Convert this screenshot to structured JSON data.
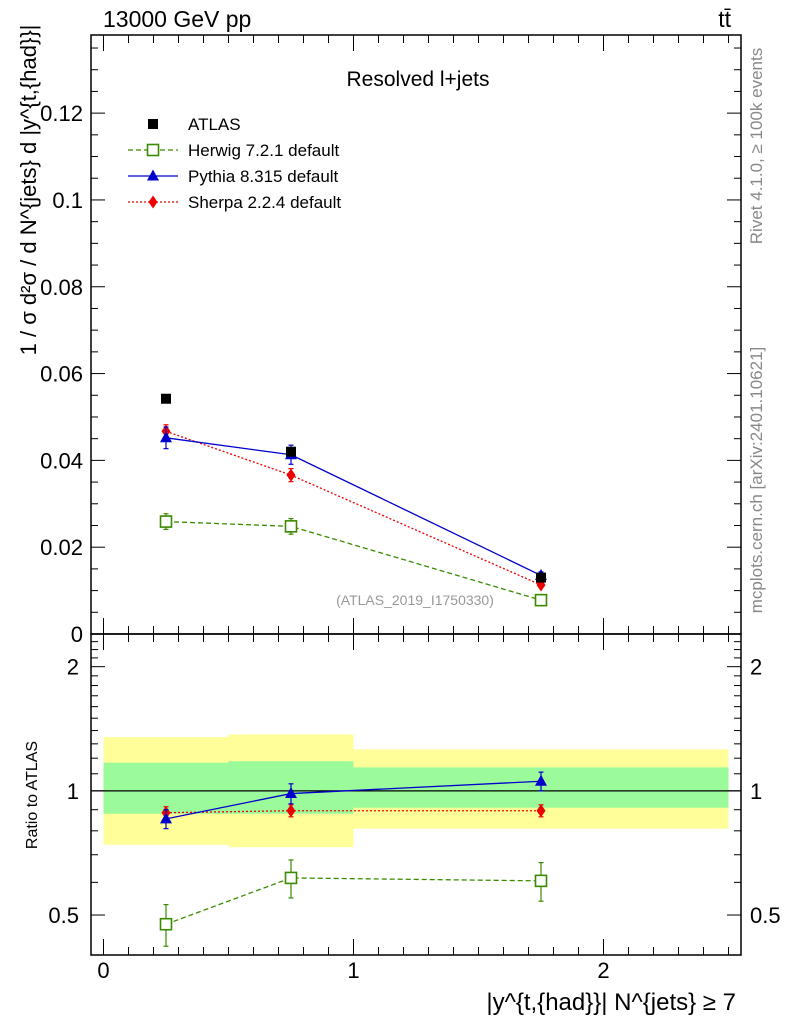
{
  "header": {
    "left": "13000 GeV pp",
    "right": "tt̄"
  },
  "side_text": {
    "rivet": "Rivet 4.1.0, ≥ 100k events",
    "mcplots": "mcplots.cern.ch [arXiv:2401.10621]"
  },
  "main_panel": {
    "title": "Resolved l+jets",
    "watermark": "(ATLAS_2019_I1750330)",
    "ylabel": "1 / σ d²σ / d N^{jets} d |y^{t,{had}}|",
    "ytick_labels": [
      "0",
      "0.02",
      "0.04",
      "0.06",
      "0.08",
      "0.1",
      "0.12"
    ]
  },
  "ratio_panel": {
    "ylabel": "Ratio to ATLAS",
    "ytick_labels_left": [
      "0.5",
      "1",
      "2"
    ],
    "ytick_labels_right": [
      "0.5",
      "1",
      "2"
    ]
  },
  "x_axis": {
    "label": "|y^{t,{had}}| N^{jets} ≥ 7",
    "tick_labels": [
      "0",
      "1",
      "2"
    ]
  },
  "legend": [
    {
      "name": "ATLAS",
      "color": "#000000",
      "marker": "filled-square"
    },
    {
      "name": "Herwig 7.2.1 default",
      "color": "#3a8a00",
      "marker": "open-square"
    },
    {
      "name": "Pythia 8.315 default",
      "color": "#0000cc",
      "marker": "filled-triangle"
    },
    {
      "name": "Sherpa 2.2.4 default",
      "color": "#ee0000",
      "marker": "filled-diamond"
    }
  ],
  "chart_data": [
    {
      "type": "scatter",
      "panel": "main",
      "title": "Resolved l+jets",
      "xlabel": "|y^{t,{had}}| N^{jets} ≥ 7",
      "ylabel": "1 / σ d²σ / d N^{jets} d |y^{t,{had}}|",
      "xlim": [
        -0.05,
        2.55
      ],
      "ylim": [
        0,
        0.138
      ],
      "x_bin_edges": [
        0.0,
        0.5,
        1.0,
        2.5
      ],
      "x": [
        0.25,
        0.75,
        1.75
      ],
      "series": [
        {
          "name": "ATLAS",
          "values": [
            0.0542,
            0.042,
            0.013
          ],
          "errors": [
            0.0,
            0.0,
            0.0
          ]
        },
        {
          "name": "Herwig 7.2.1 default",
          "values": [
            0.0259,
            0.0248,
            0.0078
          ],
          "errors": [
            0.0018,
            0.0018,
            0.0008
          ]
        },
        {
          "name": "Pythia 8.315 default",
          "values": [
            0.0452,
            0.0413,
            0.0135
          ],
          "errors": [
            0.0025,
            0.0022,
            0.0008
          ]
        },
        {
          "name": "Sherpa 2.2.4 default",
          "values": [
            0.0467,
            0.0366,
            0.0113
          ],
          "errors": [
            0.0015,
            0.0015,
            0.0005
          ]
        }
      ]
    },
    {
      "type": "scatter",
      "panel": "ratio",
      "ylabel": "Ratio to ATLAS",
      "yscale": "log",
      "ylim": [
        0.4,
        2.4
      ],
      "x": [
        0.25,
        0.75,
        1.75
      ],
      "uncertainty_bands": [
        {
          "x_range": [
            0.0,
            0.5
          ],
          "inner": [
            0.88,
            1.17
          ],
          "outer": [
            0.74,
            1.35
          ]
        },
        {
          "x_range": [
            0.5,
            1.0
          ],
          "inner": [
            0.88,
            1.18
          ],
          "outer": [
            0.73,
            1.37
          ]
        },
        {
          "x_range": [
            1.0,
            2.5
          ],
          "inner": [
            0.91,
            1.14
          ],
          "outer": [
            0.81,
            1.26
          ]
        }
      ],
      "series": [
        {
          "name": "Herwig 7.2.1 default",
          "values": [
            0.475,
            0.615,
            0.605
          ],
          "errors": [
            0.055,
            0.065,
            0.065
          ]
        },
        {
          "name": "Pythia 8.315 default",
          "values": [
            0.855,
            0.985,
            1.055
          ],
          "errors": [
            0.045,
            0.055,
            0.055
          ]
        },
        {
          "name": "Sherpa 2.2.4 default",
          "values": [
            0.885,
            0.895,
            0.895
          ],
          "errors": [
            0.03,
            0.03,
            0.03
          ]
        }
      ]
    }
  ]
}
